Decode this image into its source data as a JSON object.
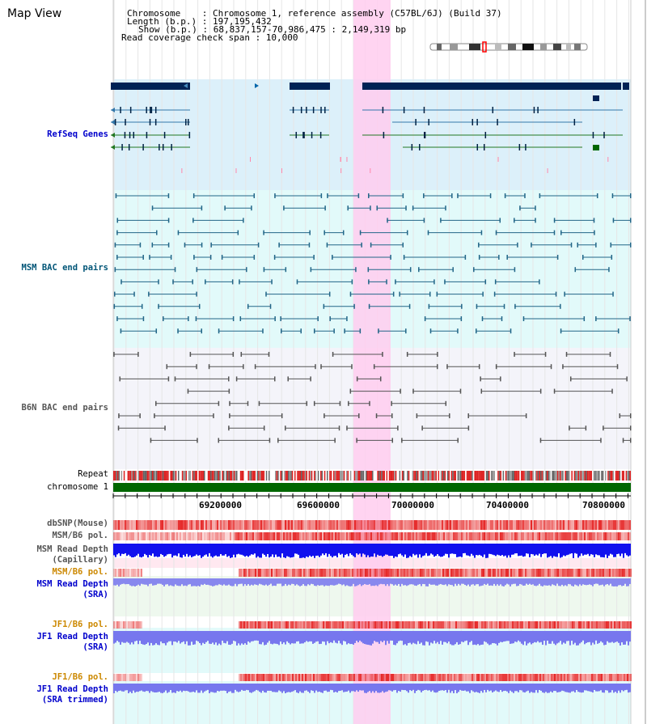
{
  "title": "Map View",
  "header": {
    "chromosome_label": "Chromosome    : Chromosome 1, reference assembly (C57BL/6J) (Build 37)",
    "length_label": "Length (b.p.) : 197,195,432",
    "show_label": "Show (b.p.) : 68,837,157-70,986,475 : 2,149,319 bp",
    "coverage_label": "Read coverage check span : 10,000"
  },
  "tracks": {
    "refseq": "RefSeq Genes",
    "msm_bac": "MSM BAC end pairs",
    "b6n_bac": "B6N BAC end pairs",
    "repeat": "Repeat",
    "chromosome": "chromosome 1",
    "dbsnp": "dbSNP(Mouse)",
    "msm_b6_pol_1": "MSM/B6 pol.",
    "msm_read_depth_cap_1": "MSM Read Depth",
    "msm_read_depth_cap_2": "(Capillary)",
    "msm_b6_pol_2": "MSM/B6 pol.",
    "msm_read_depth_sra_1": "MSM Read Depth",
    "msm_read_depth_sra_2": "(SRA)",
    "jf1_b6_pol_1": "JF1/B6 pol.",
    "jf1_read_depth_sra_1": "JF1 Read Depth",
    "jf1_read_depth_sra_2": "(SRA)",
    "jf1_b6_pol_2": "JF1/B6 pol.",
    "jf1_read_depth_trim_1": "JF1 Read Depth",
    "jf1_read_depth_trim_2": "(SRA trimmed)"
  },
  "axis": {
    "ticks": [
      "69200000",
      "69600000",
      "70000000",
      "70400000",
      "70800000"
    ]
  },
  "colors": {
    "refseq_label": "#0000cc",
    "msm_label": "#005577",
    "b6n_label": "#555555",
    "msm_read_depth_label": "#0000cc",
    "pol_label": "#cc8800",
    "highlight": "#ffccee",
    "chromosome_bar": "#006600",
    "gene_dark": "#002255"
  }
}
